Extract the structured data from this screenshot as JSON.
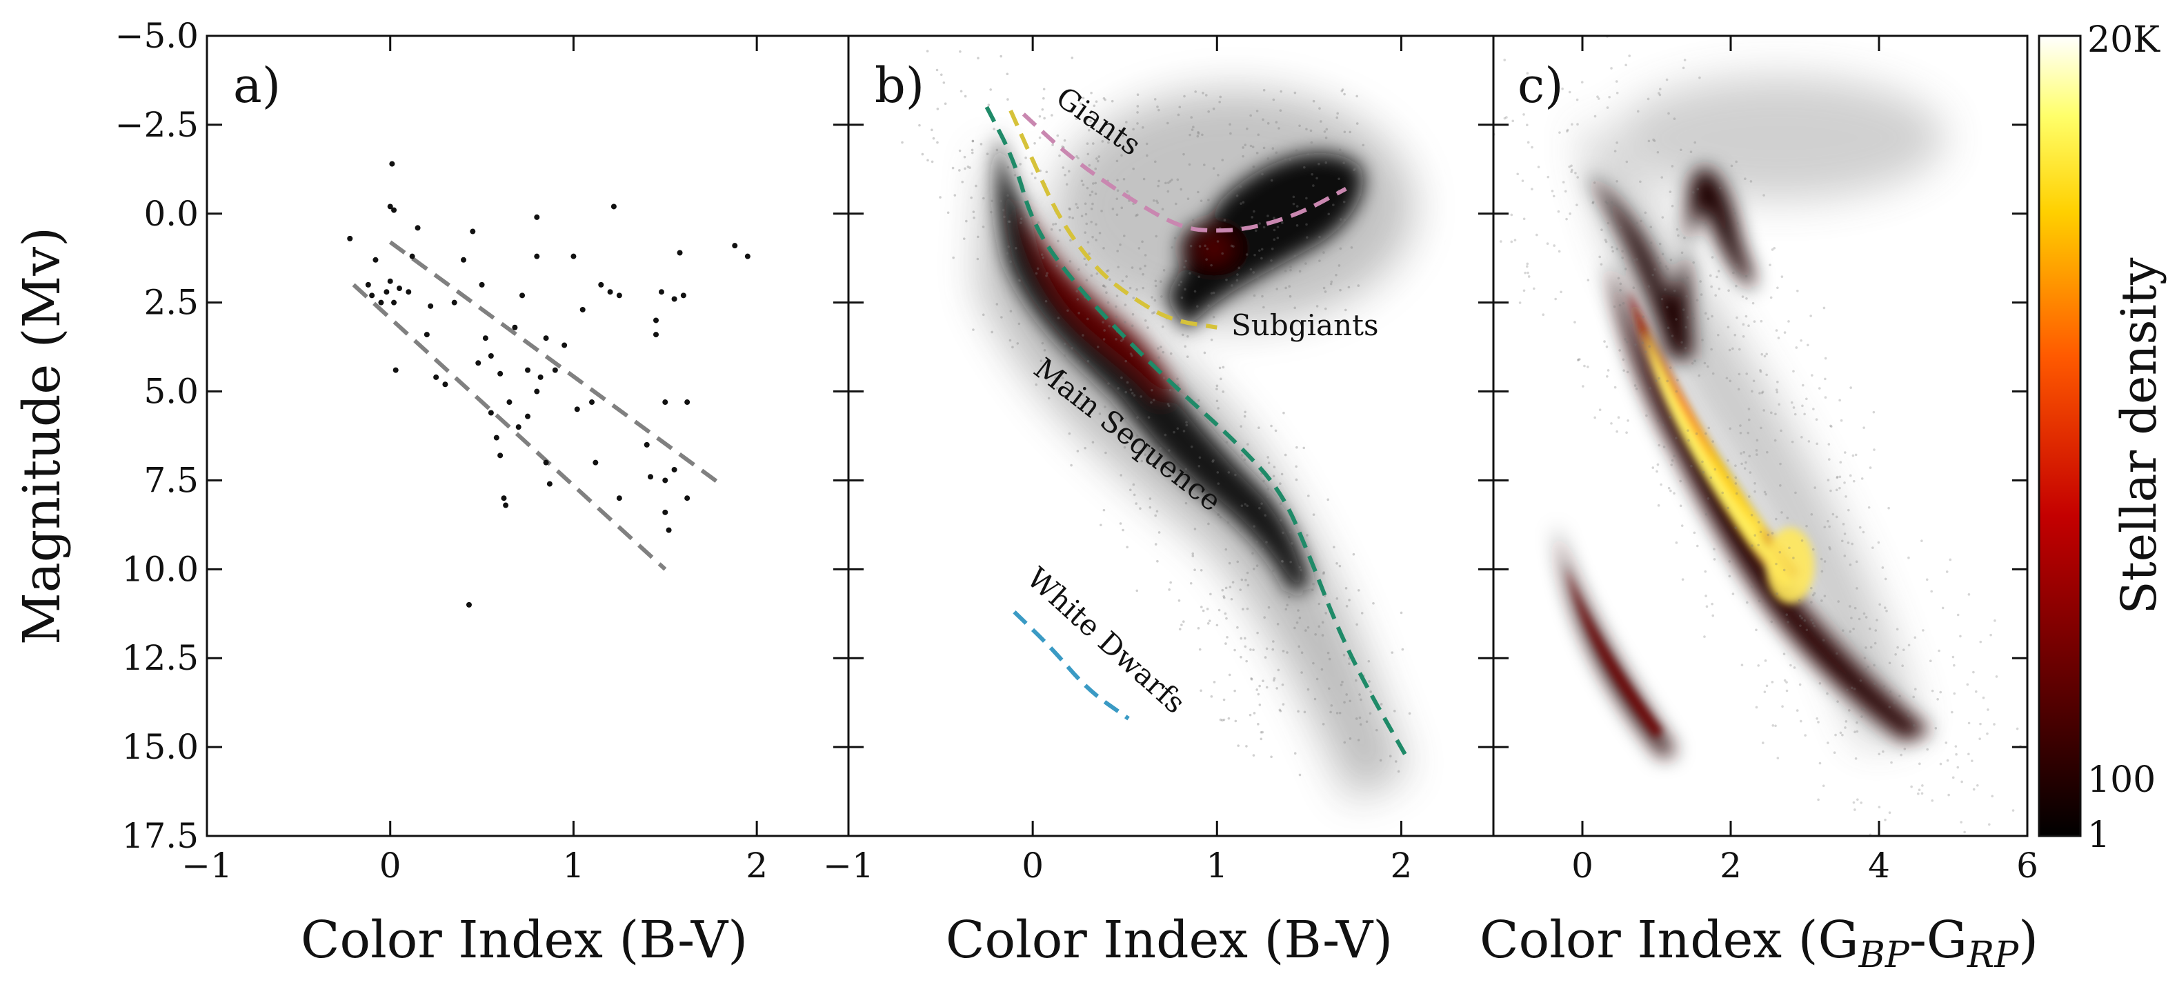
{
  "figure": {
    "ylabel": "Magnitude (Mv)",
    "colorbar": {
      "label": "Stellar density",
      "ticks": [
        "20K",
        "100",
        "1"
      ],
      "scale": "log",
      "range": [
        1,
        20000
      ]
    }
  },
  "chart_data": [
    {
      "type": "scatter",
      "panel_label": "a)",
      "xlabel": "Color Index (B-V)",
      "ylabel": "Magnitude (Mv)",
      "xlim": [
        -1,
        2.5
      ],
      "ylim": [
        17.5,
        -5
      ],
      "x_ticks": [
        -1,
        0,
        1,
        2
      ],
      "x_tick_labels": [
        "−1",
        "0",
        "1",
        "2"
      ],
      "y_ticks": [
        -5,
        -2.5,
        0,
        2.5,
        5,
        7.5,
        10,
        12.5,
        15,
        17.5
      ],
      "y_tick_labels": [
        "−5.0",
        "−2.5",
        "0.0",
        "2.5",
        "5.0",
        "7.5",
        "10.0",
        "12.5",
        "15.0",
        "17.5"
      ],
      "points": [
        [
          -0.22,
          0.7
        ],
        [
          -0.12,
          2.0
        ],
        [
          -0.1,
          2.3
        ],
        [
          -0.08,
          1.3
        ],
        [
          -0.05,
          2.5
        ],
        [
          -0.02,
          2.2
        ],
        [
          0.0,
          -0.2
        ],
        [
          0.02,
          -0.1
        ],
        [
          0.0,
          1.9
        ],
        [
          0.05,
          2.1
        ],
        [
          0.02,
          2.5
        ],
        [
          0.03,
          4.4
        ],
        [
          0.01,
          -1.4
        ],
        [
          0.1,
          2.2
        ],
        [
          0.12,
          1.2
        ],
        [
          0.15,
          0.4
        ],
        [
          0.2,
          3.4
        ],
        [
          0.22,
          2.6
        ],
        [
          0.25,
          4.6
        ],
        [
          0.3,
          4.8
        ],
        [
          0.35,
          2.5
        ],
        [
          0.4,
          1.3
        ],
        [
          0.45,
          0.5
        ],
        [
          0.48,
          4.2
        ],
        [
          0.5,
          2.0
        ],
        [
          0.52,
          3.5
        ],
        [
          0.55,
          4.0
        ],
        [
          0.55,
          5.6
        ],
        [
          0.58,
          6.3
        ],
        [
          0.6,
          4.5
        ],
        [
          0.6,
          6.8
        ],
        [
          0.62,
          8.0
        ],
        [
          0.63,
          8.2
        ],
        [
          0.65,
          5.3
        ],
        [
          0.68,
          3.2
        ],
        [
          0.7,
          6.0
        ],
        [
          0.72,
          2.3
        ],
        [
          0.75,
          5.7
        ],
        [
          0.75,
          4.4
        ],
        [
          0.8,
          1.2
        ],
        [
          0.82,
          4.6
        ],
        [
          0.85,
          3.5
        ],
        [
          0.85,
          7.0
        ],
        [
          0.87,
          7.6
        ],
        [
          0.8,
          5.0
        ],
        [
          0.8,
          0.1
        ],
        [
          0.9,
          4.4
        ],
        [
          0.95,
          3.7
        ],
        [
          1.0,
          1.2
        ],
        [
          1.02,
          5.5
        ],
        [
          1.05,
          2.7
        ],
        [
          1.1,
          5.3
        ],
        [
          1.12,
          7.0
        ],
        [
          1.15,
          2.0
        ],
        [
          1.2,
          2.2
        ],
        [
          1.25,
          2.3
        ],
        [
          1.25,
          8.0
        ],
        [
          1.22,
          -0.2
        ],
        [
          1.4,
          6.5
        ],
        [
          1.42,
          7.4
        ],
        [
          1.45,
          3.0
        ],
        [
          1.45,
          3.4
        ],
        [
          1.48,
          2.2
        ],
        [
          1.5,
          5.3
        ],
        [
          1.5,
          7.5
        ],
        [
          1.5,
          8.4
        ],
        [
          1.52,
          8.9
        ],
        [
          1.55,
          2.4
        ],
        [
          1.55,
          7.2
        ],
        [
          1.58,
          1.1
        ],
        [
          1.6,
          2.3
        ],
        [
          1.62,
          5.3
        ],
        [
          1.62,
          8.0
        ],
        [
          1.88,
          0.9
        ],
        [
          1.95,
          1.2
        ],
        [
          0.43,
          11.0
        ]
      ],
      "guide_lines": [
        {
          "from": [
            0.0,
            0.8
          ],
          "to": [
            1.8,
            7.6
          ]
        },
        {
          "from": [
            -0.2,
            2.0
          ],
          "to": [
            1.5,
            10.0
          ]
        }
      ],
      "guide_color": "#808080"
    },
    {
      "type": "scatter",
      "panel_label": "b)",
      "xlabel": "Color Index (B-V)",
      "xlim": [
        -1,
        2.5
      ],
      "ylim": [
        17.5,
        -5
      ],
      "x_ticks": [
        -1,
        0,
        1,
        2
      ],
      "x_tick_labels": [
        "−1",
        "0",
        "1",
        "2"
      ],
      "sequences": [
        {
          "name": "Giants",
          "color": "#c987b0",
          "points": [
            [
              -0.05,
              -2.8
            ],
            [
              0.2,
              -1.6
            ],
            [
              0.5,
              -0.5
            ],
            [
              0.8,
              0.4
            ],
            [
              1.0,
              0.5
            ],
            [
              1.2,
              0.4
            ],
            [
              1.45,
              0.0
            ],
            [
              1.7,
              -0.7
            ]
          ]
        },
        {
          "name": "Subgiants",
          "color": "#d6c23a",
          "points": [
            [
              -0.12,
              -2.9
            ],
            [
              0.0,
              -1.5
            ],
            [
              0.15,
              0.2
            ],
            [
              0.35,
              1.6
            ],
            [
              0.55,
              2.4
            ],
            [
              0.75,
              3.0
            ],
            [
              1.0,
              3.2
            ]
          ]
        },
        {
          "name": "Main Sequence",
          "color": "#1f8a68",
          "points": [
            [
              -0.25,
              -3.0
            ],
            [
              -0.1,
              -1.5
            ],
            [
              0.0,
              0.3
            ],
            [
              0.2,
              1.8
            ],
            [
              0.5,
              3.5
            ],
            [
              0.8,
              5.0
            ],
            [
              1.1,
              6.4
            ],
            [
              1.35,
              7.8
            ],
            [
              1.5,
              9.6
            ],
            [
              1.65,
              11.6
            ],
            [
              1.8,
              13.2
            ],
            [
              2.02,
              15.2
            ]
          ]
        },
        {
          "name": "White Dwarfs",
          "color": "#3a9ac4",
          "points": [
            [
              -0.1,
              11.2
            ],
            [
              0.1,
              12.2
            ],
            [
              0.3,
              13.4
            ],
            [
              0.52,
              14.2
            ]
          ]
        }
      ]
    },
    {
      "type": "heatmap",
      "panel_label": "c)",
      "xlabel": "Color Index (G",
      "xlabel_sub1": "BP",
      "xlabel_mid": "-G",
      "xlabel_sub2": "RP",
      "xlabel_end": ")",
      "xlim": [
        -1.2,
        6
      ],
      "ylim": [
        17.5,
        -5
      ],
      "x_ticks": [
        0,
        2,
        4,
        6
      ],
      "x_tick_labels": [
        "0",
        "2",
        "4",
        "6"
      ]
    }
  ]
}
